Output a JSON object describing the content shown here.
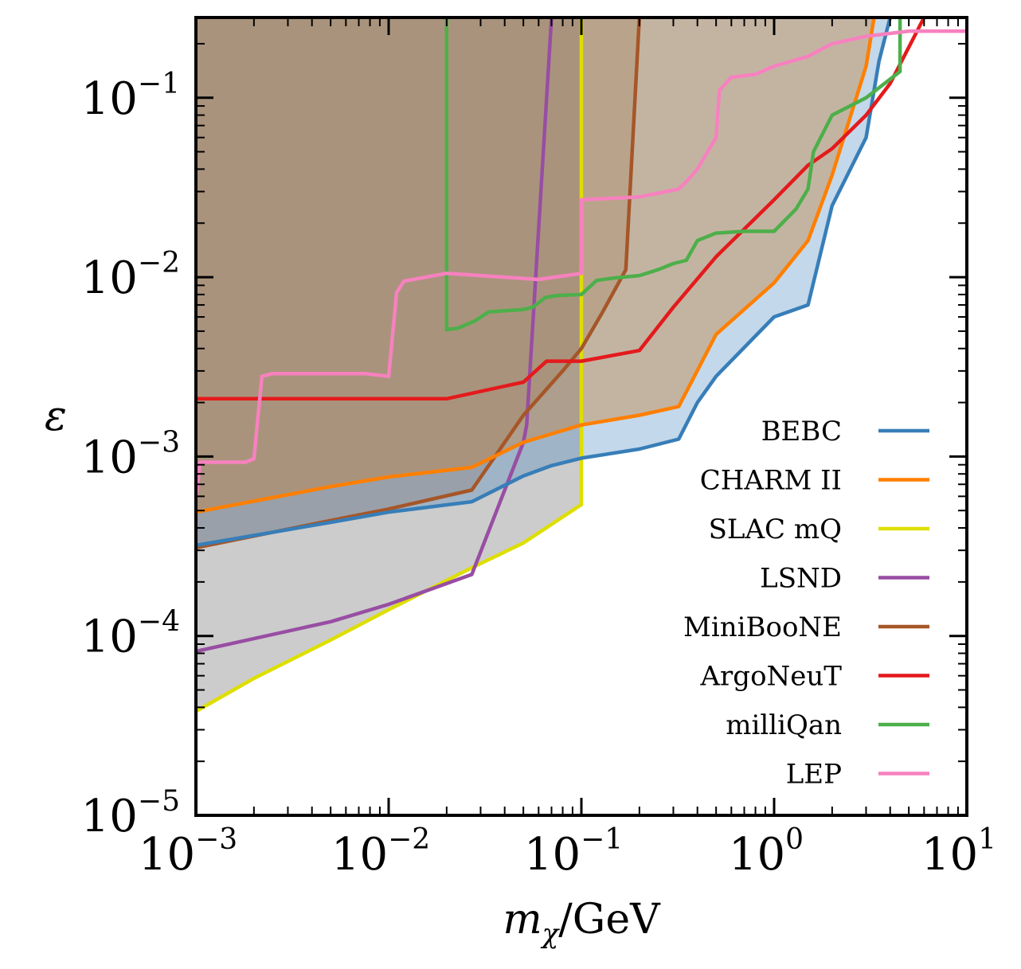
{
  "chart_data": {
    "type": "line",
    "xscale": "log",
    "yscale": "log",
    "xlim": [
      0.001,
      10
    ],
    "ylim": [
      1e-05,
      0.28
    ],
    "xlabel": {
      "main": "m",
      "sub": "χ",
      "rest": "/GeV"
    },
    "ylabel": "ε",
    "x_ticks": [
      {
        "base": "10",
        "exp": "−3",
        "value": 0.001
      },
      {
        "base": "10",
        "exp": "−2",
        "value": 0.01
      },
      {
        "base": "10",
        "exp": "−1",
        "value": 0.1
      },
      {
        "base": "10",
        "exp": "0",
        "value": 1
      },
      {
        "base": "10",
        "exp": "1",
        "value": 10
      }
    ],
    "y_ticks": [
      {
        "base": "10",
        "exp": "−5",
        "value": 1e-05
      },
      {
        "base": "10",
        "exp": "−4",
        "value": 0.0001
      },
      {
        "base": "10",
        "exp": "−3",
        "value": 0.001
      },
      {
        "base": "10",
        "exp": "−2",
        "value": 0.01
      },
      {
        "base": "10",
        "exp": "−1",
        "value": 0.1
      }
    ],
    "legend_position": "lower-right",
    "series": [
      {
        "name": "SLAC mQ",
        "color": "#dede00",
        "fill": "#bfbfbf",
        "fill_opacity": 0.8,
        "close_top": true,
        "points": [
          [
            0.001,
            3.8e-05
          ],
          [
            0.002,
            5.8e-05
          ],
          [
            0.005,
            9.5e-05
          ],
          [
            0.01,
            0.00014
          ],
          [
            0.027,
            0.00024
          ],
          [
            0.05,
            0.00033
          ],
          [
            0.1,
            0.00054
          ],
          [
            0.1,
            0.28
          ]
        ]
      },
      {
        "name": "LSND",
        "color": "#984ea3",
        "fill": null,
        "points": [
          [
            0.001,
            8.2e-05
          ],
          [
            0.005,
            0.00012
          ],
          [
            0.01,
            0.00015
          ],
          [
            0.027,
            0.00022
          ],
          [
            0.04,
            0.00065
          ],
          [
            0.05,
            0.0012
          ],
          [
            0.052,
            0.0015
          ],
          [
            0.07,
            0.28
          ]
        ]
      },
      {
        "name": "MiniBooNE",
        "color": "#a65628",
        "fill": "#a65628",
        "fill_opacity": 0.25,
        "close_top": true,
        "points": [
          [
            0.001,
            0.00031
          ],
          [
            0.005,
            0.00044
          ],
          [
            0.01,
            0.00051
          ],
          [
            0.027,
            0.00065
          ],
          [
            0.05,
            0.0017
          ],
          [
            0.08,
            0.003
          ],
          [
            0.1,
            0.004
          ],
          [
            0.13,
            0.0065
          ],
          [
            0.17,
            0.011
          ],
          [
            0.2,
            0.28
          ]
        ]
      },
      {
        "name": "CHARM II",
        "color": "#ff7f00",
        "fill": "#ff7f00",
        "fill_opacity": 0.4,
        "close_top": true,
        "points": [
          [
            0.001,
            0.00049
          ],
          [
            0.005,
            0.00068
          ],
          [
            0.01,
            0.00077
          ],
          [
            0.027,
            0.00087
          ],
          [
            0.05,
            0.0012
          ],
          [
            0.1,
            0.0015
          ],
          [
            0.2,
            0.0017
          ],
          [
            0.32,
            0.0019
          ],
          [
            0.5,
            0.0048
          ],
          [
            1,
            0.0093
          ],
          [
            1.5,
            0.016
          ],
          [
            2,
            0.037
          ],
          [
            3,
            0.15
          ],
          [
            3.3,
            0.28
          ]
        ]
      },
      {
        "name": "BEBC",
        "color": "#377eb8",
        "fill": "#377eb8",
        "fill_opacity": 0.3,
        "close_top": true,
        "points": [
          [
            0.001,
            0.00032
          ],
          [
            0.005,
            0.00043
          ],
          [
            0.01,
            0.00049
          ],
          [
            0.027,
            0.00056
          ],
          [
            0.05,
            0.00078
          ],
          [
            0.07,
            0.00089
          ],
          [
            0.1,
            0.00098
          ],
          [
            0.2,
            0.0011
          ],
          [
            0.32,
            0.00125
          ],
          [
            0.4,
            0.002
          ],
          [
            0.5,
            0.0028
          ],
          [
            1,
            0.006
          ],
          [
            1.5,
            0.007
          ],
          [
            2,
            0.025
          ],
          [
            3,
            0.06
          ],
          [
            3.5,
            0.16
          ],
          [
            4,
            0.28
          ]
        ]
      },
      {
        "name": "ArgoNeuT",
        "color": "#e41a1c",
        "fill": null,
        "points": [
          [
            0.001,
            0.0021
          ],
          [
            0.01,
            0.0021
          ],
          [
            0.02,
            0.0021
          ],
          [
            0.05,
            0.0026
          ],
          [
            0.066,
            0.0034
          ],
          [
            0.1,
            0.0034
          ],
          [
            0.2,
            0.0039
          ],
          [
            0.3,
            0.0068
          ],
          [
            0.5,
            0.013
          ],
          [
            1,
            0.027
          ],
          [
            1.5,
            0.042
          ],
          [
            2,
            0.052
          ],
          [
            3,
            0.08
          ],
          [
            4,
            0.12
          ],
          [
            6,
            0.28
          ]
        ]
      },
      {
        "name": "milliQan",
        "color": "#4daf4a",
        "fill": null,
        "points": [
          [
            0.02,
            0.28
          ],
          [
            0.02,
            0.0051
          ],
          [
            0.023,
            0.0052
          ],
          [
            0.028,
            0.0057
          ],
          [
            0.033,
            0.0064
          ],
          [
            0.05,
            0.0066
          ],
          [
            0.056,
            0.0068
          ],
          [
            0.065,
            0.0077
          ],
          [
            0.075,
            0.0079
          ],
          [
            0.1,
            0.008
          ],
          [
            0.12,
            0.0096
          ],
          [
            0.15,
            0.0099
          ],
          [
            0.2,
            0.0102
          ],
          [
            0.25,
            0.011
          ],
          [
            0.3,
            0.0119
          ],
          [
            0.35,
            0.0124
          ],
          [
            0.4,
            0.016
          ],
          [
            0.5,
            0.0176
          ],
          [
            0.7,
            0.018
          ],
          [
            1,
            0.018
          ],
          [
            1.3,
            0.024
          ],
          [
            1.5,
            0.031
          ],
          [
            1.6,
            0.05
          ],
          [
            2,
            0.08
          ],
          [
            3,
            0.1
          ],
          [
            4.5,
            0.14
          ],
          [
            4.5,
            0.28
          ]
        ]
      },
      {
        "name": "LEP",
        "color": "#f781bf",
        "fill": null,
        "points": [
          [
            0.001,
            0.00058
          ],
          [
            0.00105,
            0.00093
          ],
          [
            0.0018,
            0.00093
          ],
          [
            0.002,
            0.00097
          ],
          [
            0.0022,
            0.0028
          ],
          [
            0.0025,
            0.0029
          ],
          [
            0.0075,
            0.0029
          ],
          [
            0.01,
            0.0028
          ],
          [
            0.011,
            0.0082
          ],
          [
            0.012,
            0.0095
          ],
          [
            0.02,
            0.0105
          ],
          [
            0.06,
            0.0097
          ],
          [
            0.1,
            0.0105
          ],
          [
            0.1,
            0.027
          ],
          [
            0.2,
            0.028
          ],
          [
            0.32,
            0.031
          ],
          [
            0.35,
            0.034
          ],
          [
            0.4,
            0.04
          ],
          [
            0.5,
            0.06
          ],
          [
            0.52,
            0.11
          ],
          [
            0.6,
            0.13
          ],
          [
            0.8,
            0.135
          ],
          [
            1,
            0.15
          ],
          [
            1.5,
            0.17
          ],
          [
            2,
            0.2
          ],
          [
            3,
            0.22
          ],
          [
            5,
            0.235
          ],
          [
            10,
            0.235
          ]
        ]
      }
    ],
    "legend_order": [
      "BEBC",
      "CHARM II",
      "SLAC mQ",
      "LSND",
      "MiniBooNE",
      "ArgoNeuT",
      "milliQan",
      "LEP"
    ]
  }
}
